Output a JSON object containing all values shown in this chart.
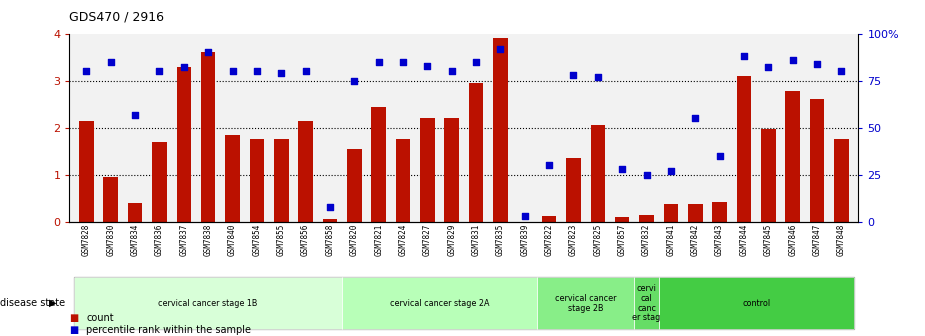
{
  "title": "GDS470 / 2916",
  "samples": [
    "GSM7828",
    "GSM7830",
    "GSM7834",
    "GSM7836",
    "GSM7837",
    "GSM7838",
    "GSM7840",
    "GSM7854",
    "GSM7855",
    "GSM7856",
    "GSM7858",
    "GSM7820",
    "GSM7821",
    "GSM7824",
    "GSM7827",
    "GSM7829",
    "GSM7831",
    "GSM7835",
    "GSM7839",
    "GSM7822",
    "GSM7823",
    "GSM7825",
    "GSM7857",
    "GSM7832",
    "GSM7841",
    "GSM7842",
    "GSM7843",
    "GSM7844",
    "GSM7845",
    "GSM7846",
    "GSM7847",
    "GSM7848"
  ],
  "bar_values": [
    2.15,
    0.95,
    0.4,
    1.7,
    3.3,
    3.6,
    1.85,
    1.75,
    1.75,
    2.15,
    0.05,
    1.55,
    2.45,
    1.75,
    2.2,
    2.2,
    2.95,
    3.9,
    0.0,
    0.12,
    1.35,
    2.05,
    0.1,
    0.15,
    0.38,
    0.38,
    0.42,
    3.1,
    1.98,
    2.78,
    2.62,
    1.75
  ],
  "dot_pct": [
    80,
    85,
    57,
    80,
    82,
    90,
    80,
    80,
    79,
    80,
    8,
    75,
    85,
    85,
    83,
    80,
    85,
    92,
    3,
    30,
    78,
    77,
    28,
    25,
    27,
    55,
    35,
    88,
    82,
    86,
    84,
    80
  ],
  "groups": [
    {
      "start": 0,
      "end": 11,
      "label": "cervical cancer stage 1B",
      "color": "#d8ffd8"
    },
    {
      "start": 11,
      "end": 19,
      "label": "cervical cancer stage 2A",
      "color": "#b8ffb8"
    },
    {
      "start": 19,
      "end": 23,
      "label": "cervical cancer\nstage 2B",
      "color": "#88ee88"
    },
    {
      "start": 23,
      "end": 24,
      "label": "cervi\ncal\ncanc\ner stag",
      "color": "#66dd66"
    },
    {
      "start": 24,
      "end": 32,
      "label": "control",
      "color": "#44cc44"
    }
  ],
  "bar_color": "#bb1100",
  "dot_color": "#0000cc",
  "yticks_left": [
    0,
    1,
    2,
    3,
    4
  ],
  "yticks_right": [
    0,
    25,
    50,
    75,
    100
  ],
  "ytick_labels_right": [
    "0",
    "25",
    "50",
    "75",
    "100%"
  ]
}
